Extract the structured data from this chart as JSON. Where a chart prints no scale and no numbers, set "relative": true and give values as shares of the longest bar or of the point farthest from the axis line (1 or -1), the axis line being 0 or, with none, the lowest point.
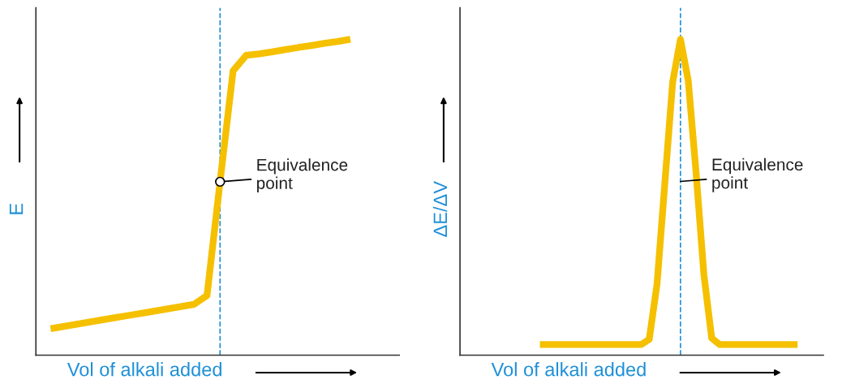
{
  "chart_data": [
    {
      "type": "line",
      "relative": true,
      "xlabel": "Vol of alkali added",
      "ylabel": "E",
      "categories": [
        null,
        null,
        null,
        null,
        null,
        null,
        null,
        null,
        null,
        null,
        null,
        null,
        null,
        null,
        null,
        null,
        null,
        null,
        null,
        null,
        null,
        null,
        null,
        null
      ],
      "series": [
        {
          "color": "#f5c000",
          "values": [
            0.084,
            0.091,
            0.098,
            0.105,
            0.112,
            0.119,
            0.126,
            0.133,
            0.14,
            0.147,
            0.154,
            0.161,
            0.189,
            0.549,
            0.9,
            0.949,
            0.954,
            0.96,
            0.967,
            0.974,
            0.98,
            0.987,
            0.993,
            1.0
          ]
        }
      ],
      "annotations": [
        "Equivalence\npoint"
      ]
    },
    {
      "type": "line",
      "relative": true,
      "xlabel": "Vol of alkali added",
      "ylabel": "ΔE/ΔV",
      "categories": [
        null,
        null,
        null,
        null,
        null,
        null,
        null,
        null,
        null,
        null,
        null,
        null,
        null,
        null,
        null,
        null,
        null,
        null,
        null,
        null,
        null,
        null,
        null,
        null,
        null,
        null,
        null,
        null,
        null,
        null,
        null,
        null,
        null,
        null
      ],
      "series": [
        {
          "color": "#f5c000",
          "values": [
            0.034,
            0.034,
            0.034,
            0.034,
            0.034,
            0.034,
            0.034,
            0.034,
            0.034,
            0.034,
            0.034,
            0.034,
            0.034,
            0.034,
            0.05,
            0.225,
            0.544,
            0.864,
            1.0,
            0.869,
            0.578,
            0.256,
            0.054,
            0.034,
            0.034,
            0.034,
            0.034,
            0.034,
            0.034,
            0.034,
            0.034,
            0.034,
            0.034,
            0.034
          ]
        }
      ],
      "annotations": [
        "Equivalence\npoint"
      ]
    }
  ]
}
